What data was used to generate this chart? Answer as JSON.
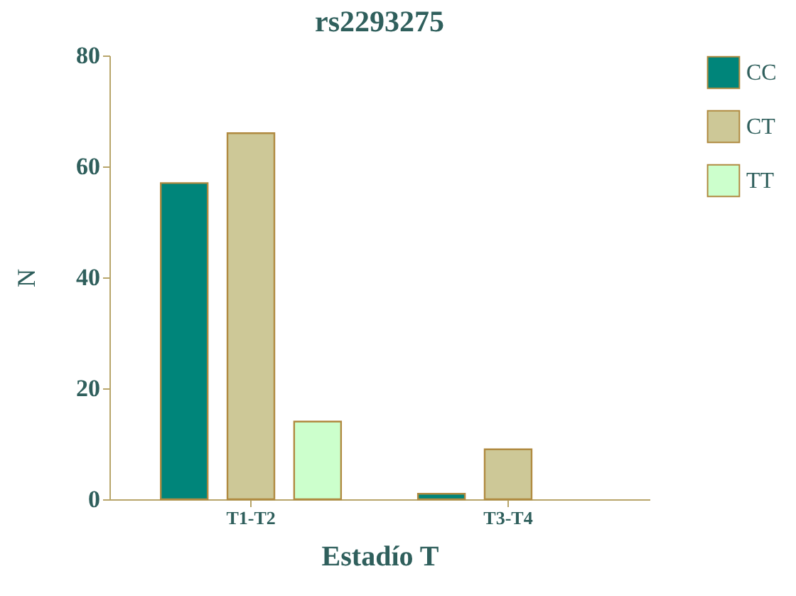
{
  "chart_data": {
    "type": "bar",
    "title": "rs2293275",
    "xlabel": "Estadío T",
    "ylabel": "N",
    "categories": [
      "T1-T2",
      "T3-T4"
    ],
    "series": [
      {
        "name": "CC",
        "color": "#00857a",
        "values": [
          57,
          1
        ]
      },
      {
        "name": "CT",
        "color": "#cdc897",
        "values": [
          66,
          9
        ]
      },
      {
        "name": "TT",
        "color": "#ccffcc",
        "values": [
          14,
          null
        ]
      }
    ],
    "ylim": [
      0,
      80
    ],
    "yticks": [
      0,
      20,
      40,
      60,
      80
    ],
    "grid": false,
    "legend": "top right"
  }
}
